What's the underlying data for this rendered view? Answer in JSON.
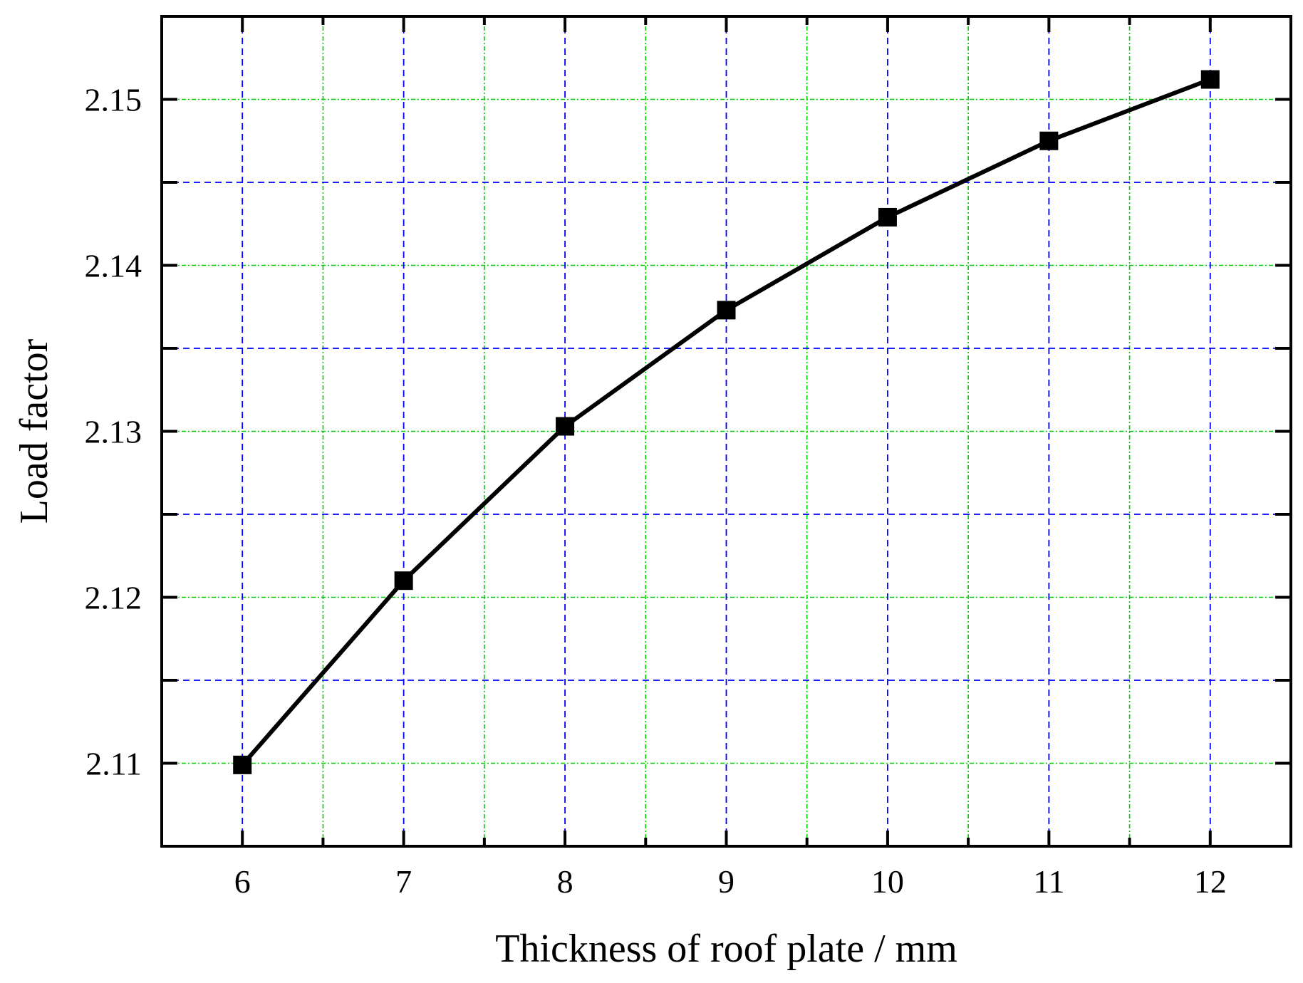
{
  "chart_data": {
    "type": "line",
    "title": "",
    "xlabel": "Thickness of roof plate / mm",
    "ylabel": "Load factor",
    "x": [
      6,
      7,
      8,
      9,
      10,
      11,
      12
    ],
    "series": [
      {
        "values": [
          2.1099,
          2.121,
          2.1303,
          2.1373,
          2.1429,
          2.1475,
          2.1512
        ],
        "marker": "square",
        "color": "#000000"
      }
    ],
    "xlim": [
      5.5,
      12.5
    ],
    "ylim": [
      2.105,
      2.155
    ],
    "xticks": [
      6,
      7,
      8,
      9,
      10,
      11,
      12
    ],
    "xtick_labels": [
      "6",
      "7",
      "8",
      "9",
      "10",
      "11",
      "12"
    ],
    "yticks": [
      2.11,
      2.12,
      2.13,
      2.14,
      2.15
    ],
    "ytick_labels": [
      "2.11",
      "2.12",
      "2.13",
      "2.14",
      "2.15"
    ],
    "grid": {
      "major": true,
      "minor": true,
      "major_color": "#0000ff",
      "minor_color": "#00cc00",
      "style": "dashed"
    },
    "legend": "none"
  }
}
